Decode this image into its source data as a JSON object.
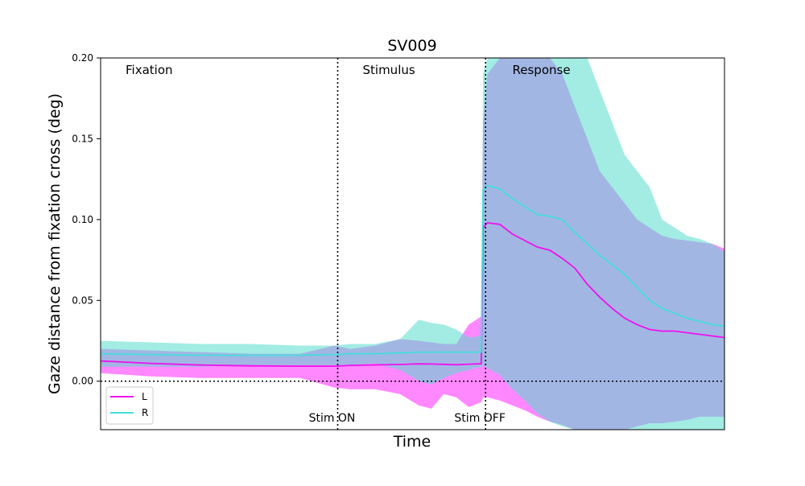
{
  "chart_data": {
    "type": "area",
    "title": "SV009",
    "xlabel": "Time",
    "ylabel": "Gaze distance from fixation cross (deg)",
    "ylim": [
      -0.03,
      0.2
    ],
    "yticks": [
      "0.00",
      "0.05",
      "0.10",
      "0.15",
      "0.20"
    ],
    "ytick_values": [
      0.0,
      0.05,
      0.1,
      0.15,
      0.2
    ],
    "xlim": [
      0,
      100
    ],
    "grid": false,
    "legend_position": "lower-left",
    "phase_labels": [
      {
        "text": "Fixation",
        "x": 4
      },
      {
        "text": "Stimulus",
        "x": 42
      },
      {
        "text": "Response",
        "x": 66
      }
    ],
    "events": [
      {
        "label": "Stim ON",
        "x": 38
      },
      {
        "label": "Stim OFF",
        "x": 61.7
      }
    ],
    "zero_line": 0,
    "series": [
      {
        "name": "L",
        "color": "#ee11ee",
        "band_color": "#ff55ff",
        "x": [
          0,
          8,
          16,
          24,
          32,
          37.5,
          40,
          44,
          48,
          51,
          53,
          55,
          57,
          59,
          61,
          61.3,
          62,
          64,
          66,
          68,
          70,
          72,
          74,
          76,
          78,
          80,
          82,
          84,
          86,
          88,
          90,
          92,
          94,
          96,
          98,
          100
        ],
        "mean": [
          0.0125,
          0.011,
          0.01,
          0.0095,
          0.0093,
          0.0093,
          0.0098,
          0.0101,
          0.0103,
          0.0107,
          0.0106,
          0.0104,
          0.0102,
          0.0105,
          0.0108,
          0.095,
          0.098,
          0.097,
          0.091,
          0.087,
          0.083,
          0.081,
          0.076,
          0.07,
          0.06,
          0.052,
          0.045,
          0.039,
          0.035,
          0.032,
          0.031,
          0.031,
          0.03,
          0.029,
          0.028,
          0.027
        ],
        "upper": [
          0.02,
          0.019,
          0.018,
          0.017,
          0.017,
          0.022,
          0.02,
          0.022,
          0.026,
          0.025,
          0.024,
          0.023,
          0.023,
          0.035,
          0.04,
          0.16,
          0.19,
          0.2,
          0.2,
          0.2,
          0.2,
          0.2,
          0.19,
          0.17,
          0.15,
          0.13,
          0.12,
          0.11,
          0.1,
          0.095,
          0.09,
          0.088,
          0.087,
          0.086,
          0.085,
          0.082
        ],
        "lower": [
          0.005,
          0.003,
          0.002,
          0.002,
          0.002,
          -0.004,
          -0.005,
          -0.005,
          -0.008,
          -0.015,
          -0.017,
          -0.008,
          -0.01,
          -0.016,
          -0.013,
          -0.01,
          -0.01,
          -0.012,
          -0.015,
          -0.018,
          -0.022,
          -0.025,
          -0.027,
          -0.03,
          -0.03,
          -0.03,
          -0.03,
          -0.03,
          -0.028,
          -0.026,
          -0.026,
          -0.025,
          -0.024,
          -0.022,
          -0.022,
          -0.022
        ]
      },
      {
        "name": "R",
        "color": "#44dddd",
        "band_color": "#55ddcc",
        "x": [
          0,
          8,
          16,
          24,
          32,
          37.5,
          40,
          44,
          48,
          51,
          53,
          55,
          57,
          59,
          61,
          61.3,
          62,
          64,
          66,
          68,
          70,
          72,
          74,
          76,
          78,
          80,
          82,
          84,
          86,
          88,
          90,
          92,
          94,
          96,
          98,
          100
        ],
        "mean": [
          0.017,
          0.0165,
          0.016,
          0.016,
          0.016,
          0.0165,
          0.017,
          0.017,
          0.0175,
          0.018,
          0.018,
          0.018,
          0.018,
          0.018,
          0.018,
          0.118,
          0.121,
          0.119,
          0.113,
          0.108,
          0.103,
          0.102,
          0.1,
          0.092,
          0.085,
          0.078,
          0.072,
          0.066,
          0.058,
          0.05,
          0.045,
          0.042,
          0.039,
          0.037,
          0.035,
          0.034
        ],
        "upper": [
          0.025,
          0.024,
          0.023,
          0.023,
          0.022,
          0.022,
          0.023,
          0.023,
          0.026,
          0.038,
          0.036,
          0.035,
          0.032,
          0.027,
          0.028,
          0.19,
          0.2,
          0.2,
          0.2,
          0.2,
          0.2,
          0.2,
          0.2,
          0.2,
          0.2,
          0.18,
          0.16,
          0.14,
          0.13,
          0.12,
          0.1,
          0.095,
          0.09,
          0.088,
          0.085,
          0.08
        ],
        "lower": [
          0.009,
          0.009,
          0.009,
          0.01,
          0.01,
          0.01,
          0.01,
          0.011,
          0.007,
          0.0,
          -0.002,
          0.002,
          0.005,
          0.007,
          0.009,
          0.01,
          0.008,
          0.004,
          -0.005,
          -0.012,
          -0.02,
          -0.025,
          -0.028,
          -0.03,
          -0.03,
          -0.03,
          -0.03,
          -0.03,
          -0.03,
          -0.03,
          -0.03,
          -0.03,
          -0.03,
          -0.03,
          -0.03,
          -0.03
        ]
      }
    ]
  }
}
